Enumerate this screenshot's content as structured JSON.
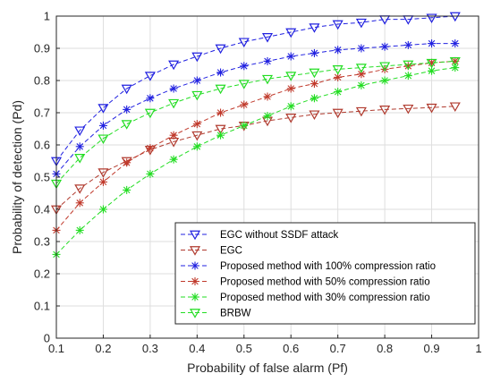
{
  "chart_data": {
    "type": "line",
    "xlabel": "Probability of false alarm (Pf)",
    "ylabel": "Probability of detection (Pd)",
    "xlim": [
      0.1,
      1
    ],
    "ylim": [
      0,
      1
    ],
    "x_ticks": [
      "0.1",
      "0.2",
      "0.3",
      "0.4",
      "0.5",
      "0.6",
      "0.7",
      "0.8",
      "0.9",
      "1"
    ],
    "y_ticks": [
      "0",
      "0.1",
      "0.2",
      "0.3",
      "0.4",
      "0.5",
      "0.6",
      "0.7",
      "0.8",
      "0.9",
      "1"
    ],
    "grid": true,
    "legend_position": "bottom-right",
    "x": [
      0.1,
      0.15,
      0.2,
      0.25,
      0.3,
      0.35,
      0.4,
      0.45,
      0.5,
      0.55,
      0.6,
      0.65,
      0.7,
      0.75,
      0.8,
      0.85,
      0.9,
      0.95
    ],
    "series": [
      {
        "name": "EGC without SSDF attack",
        "color": "#2020e0",
        "marker": "triangle-down",
        "values": [
          0.55,
          0.645,
          0.715,
          0.775,
          0.815,
          0.85,
          0.875,
          0.9,
          0.92,
          0.935,
          0.95,
          0.965,
          0.975,
          0.98,
          0.99,
          0.99,
          0.995,
          1.0
        ]
      },
      {
        "name": "EGC",
        "color": "#b03a2e",
        "marker": "triangle-down",
        "values": [
          0.4,
          0.465,
          0.515,
          0.55,
          0.585,
          0.61,
          0.63,
          0.65,
          0.66,
          0.675,
          0.685,
          0.695,
          0.7,
          0.705,
          0.71,
          0.713,
          0.716,
          0.72
        ]
      },
      {
        "name": "Proposed method with 100% compression ratio",
        "color": "#2020e0",
        "marker": "star",
        "values": [
          0.51,
          0.595,
          0.66,
          0.71,
          0.745,
          0.775,
          0.8,
          0.825,
          0.845,
          0.86,
          0.875,
          0.885,
          0.895,
          0.9,
          0.905,
          0.91,
          0.915,
          0.915
        ]
      },
      {
        "name": "Proposed method with 50% compression ratio",
        "color": "#c0392b",
        "marker": "star",
        "values": [
          0.335,
          0.42,
          0.485,
          0.545,
          0.59,
          0.63,
          0.665,
          0.7,
          0.725,
          0.75,
          0.775,
          0.79,
          0.81,
          0.82,
          0.835,
          0.845,
          0.855,
          0.86
        ]
      },
      {
        "name": "Proposed method with 30% compression ratio",
        "color": "#22dd22",
        "marker": "star",
        "values": [
          0.26,
          0.335,
          0.4,
          0.46,
          0.51,
          0.555,
          0.595,
          0.63,
          0.66,
          0.69,
          0.72,
          0.745,
          0.765,
          0.785,
          0.8,
          0.815,
          0.83,
          0.84
        ]
      },
      {
        "name": "BRBW",
        "color": "#22dd22",
        "marker": "triangle-down",
        "values": [
          0.48,
          0.56,
          0.62,
          0.665,
          0.7,
          0.73,
          0.755,
          0.775,
          0.79,
          0.805,
          0.815,
          0.825,
          0.835,
          0.84,
          0.845,
          0.85,
          0.855,
          0.86
        ]
      }
    ]
  }
}
